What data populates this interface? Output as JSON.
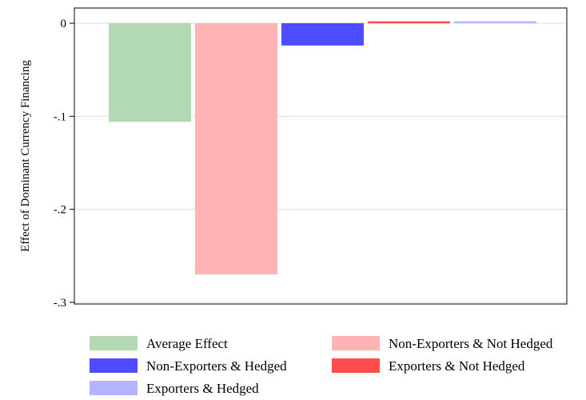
{
  "chart_data": {
    "type": "bar",
    "ylabel": "Effect of Dominant Currency Financing",
    "xlabel": "",
    "ylim": [
      -0.3,
      0
    ],
    "yticks": [
      0,
      -0.1,
      -0.2,
      -0.3
    ],
    "ytick_labels": [
      "0",
      "-.1",
      "-.2",
      "-.3"
    ],
    "grid": true,
    "legend_position": "bottom",
    "series": [
      {
        "name": "Average Effect",
        "value": -0.106,
        "color": "#b3d9b3"
      },
      {
        "name": "Non-Exporters & Not Hedged",
        "value": -0.27,
        "color": "#ffb3b3"
      },
      {
        "name": "Non-Exporters & Hedged",
        "value": -0.024,
        "color": "#4d4dff"
      },
      {
        "name": "Exporters & Not Hedged",
        "value": 0.002,
        "color": "#ff4d4d"
      },
      {
        "name": "Exporters & Hedged",
        "value": 0.002,
        "color": "#b3b3ff"
      }
    ]
  }
}
